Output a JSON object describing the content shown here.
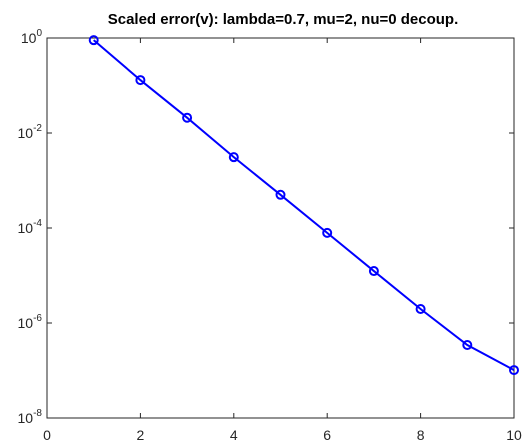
{
  "chart_data": {
    "type": "line",
    "title": "Scaled error(v): lambda=0.7, mu=2, nu=0 decoup.",
    "x": [
      1,
      2,
      3,
      4,
      5,
      6,
      7,
      8,
      9,
      10
    ],
    "series": [
      {
        "color": "#0000ff",
        "marker": "circle",
        "values": [
          0.9,
          0.13,
          0.021,
          0.0031,
          0.0005,
          7.9e-05,
          1.24e-05,
          1.97e-06,
          3.44e-07,
          1.02e-07
        ]
      }
    ],
    "xlim": [
      0,
      10
    ],
    "xticks": [
      0,
      2,
      4,
      6,
      8,
      10
    ],
    "ylim": [
      1e-08,
      1
    ],
    "yscale": "log",
    "yticks": [
      {
        "value": 1e-08,
        "label": "10",
        "exponent": "-8"
      },
      {
        "value": 1e-06,
        "label": "10",
        "exponent": "-6"
      },
      {
        "value": 0.0001,
        "label": "10",
        "exponent": "-4"
      },
      {
        "value": 0.01,
        "label": "10",
        "exponent": "-2"
      },
      {
        "value": 1,
        "label": "10",
        "exponent": "0"
      }
    ]
  }
}
